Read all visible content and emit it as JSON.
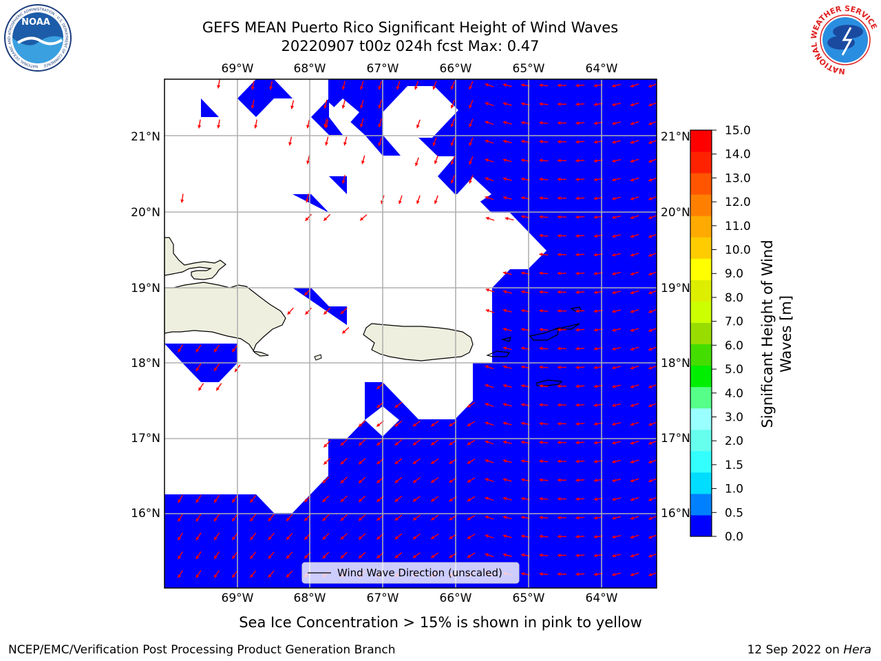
{
  "title": {
    "line1": "GEFS MEAN Puerto Rico Significant Height of Wind Waves",
    "line2": "20220907 t00z 024h fcst   Max: 0.47"
  },
  "map": {
    "lon_ticks": [
      "69°W",
      "68°W",
      "67°W",
      "66°W",
      "65°W",
      "64°W"
    ],
    "lat_ticks": [
      "21°N",
      "20°N",
      "19°N",
      "18°N",
      "17°N",
      "16°N"
    ],
    "lon_range": [
      -70,
      -63.3
    ],
    "lat_range": [
      15,
      21.75
    ],
    "colors": {
      "ocean_fill": "#0000ff",
      "land": "#efefdf",
      "arrow": "#ff0000",
      "grid": "#b0b0b0"
    },
    "legend": "Wind Wave Direction (unscaled)"
  },
  "colorbar": {
    "label_line1": "Significant Height of Wind",
    "label_line2": "Waves [m]",
    "ticks": [
      "0.0",
      "0.5",
      "1.0",
      "1.5",
      "2.0",
      "3.0",
      "4.0",
      "5.0",
      "6.0",
      "7.0",
      "8.0",
      "9.0",
      "10.0",
      "11.0",
      "12.0",
      "13.0",
      "14.0",
      "15.0"
    ],
    "colors": [
      "#0000ff",
      "#0080ff",
      "#00ddff",
      "#33ffff",
      "#66ffee",
      "#99ffff",
      "#55ff88",
      "#00ee00",
      "#44dd00",
      "#99dd00",
      "#ccff00",
      "#ddee00",
      "#ffff00",
      "#ffcc00",
      "#ffaa00",
      "#ff8000",
      "#ff5500",
      "#ff2200",
      "#ff0000"
    ]
  },
  "note": "Sea Ice Concentration > 15% is shown in pink to yellow",
  "footer": {
    "left": "NCEP/EMC/Verification Post Processing Product Generation Branch",
    "right_prefix": "12 Sep 2022 on ",
    "right_machine": "Hera"
  },
  "logos": {
    "noaa": "NOAA",
    "noaa_ring": "NATIONAL OCEANIC AND ATMOSPHERIC ADMINISTRATION · U.S. DEPARTMENT OF COMMERCE",
    "nws_ring": "NATIONAL WEATHER SERVICE"
  }
}
